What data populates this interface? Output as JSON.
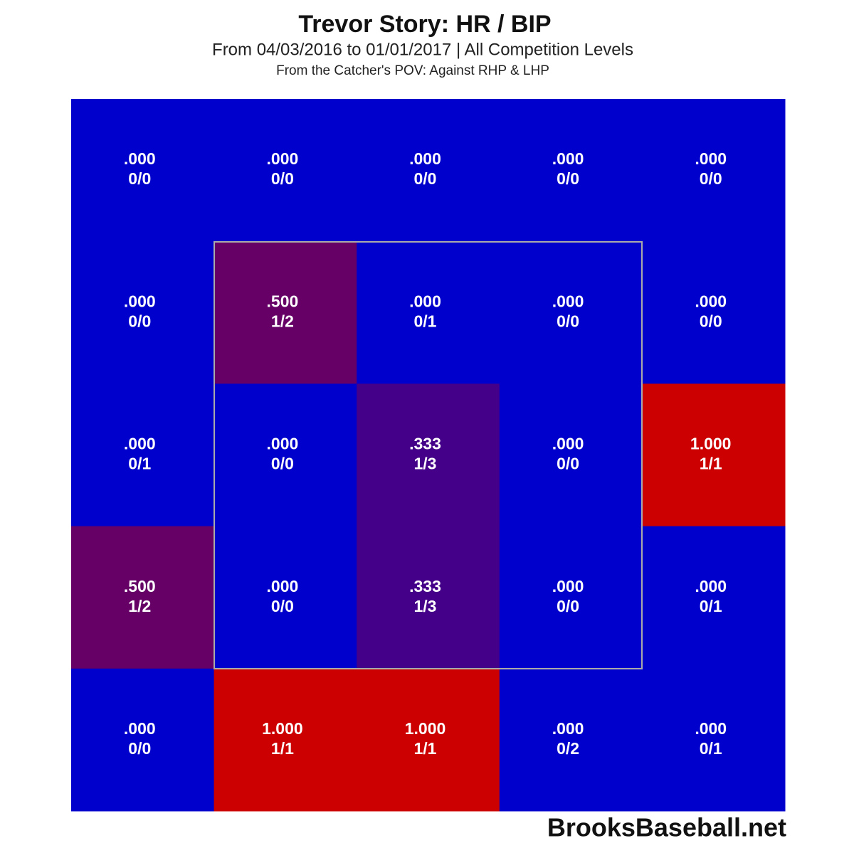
{
  "chart_data": {
    "type": "heatmap",
    "title": "Trevor Story: HR / BIP",
    "subtitle": "From 04/03/2016 to 01/01/2017 | All Competition Levels",
    "note": "From the Catcher's POV:   Against RHP & LHP",
    "source": "BrooksBaseball.net",
    "colorscale": [
      "#0000cc",
      "#cc0000"
    ],
    "values": [
      [
        0,
        0,
        0,
        0,
        0
      ],
      [
        0,
        0.5,
        0,
        0,
        0
      ],
      [
        0,
        0,
        0.333,
        0,
        1
      ],
      [
        0.5,
        0,
        0.333,
        0,
        0
      ],
      [
        0,
        1,
        1,
        0,
        0
      ]
    ],
    "value_labels": [
      [
        ".000",
        ".000",
        ".000",
        ".000",
        ".000"
      ],
      [
        ".000",
        ".500",
        ".000",
        ".000",
        ".000"
      ],
      [
        ".000",
        ".000",
        ".333",
        ".000",
        "1.000"
      ],
      [
        ".500",
        ".000",
        ".333",
        ".000",
        ".000"
      ],
      [
        ".000",
        "1.000",
        "1.000",
        ".000",
        ".000"
      ]
    ],
    "fractions": [
      [
        "0/0",
        "0/0",
        "0/0",
        "0/0",
        "0/0"
      ],
      [
        "0/0",
        "1/2",
        "0/1",
        "0/0",
        "0/0"
      ],
      [
        "0/1",
        "0/0",
        "1/3",
        "0/0",
        "1/1"
      ],
      [
        "1/2",
        "0/0",
        "1/3",
        "0/0",
        "0/1"
      ],
      [
        "0/0",
        "1/1",
        "1/1",
        "0/2",
        "0/1"
      ]
    ]
  }
}
